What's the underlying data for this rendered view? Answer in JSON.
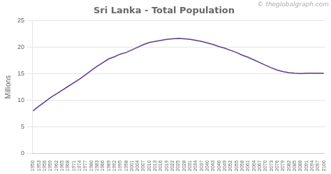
{
  "chart_data": {
    "type": "line",
    "title": "Sri Lanka - Total Population",
    "y_label": "Millions",
    "annotations": [
      "© theglobalgraph.com"
    ],
    "x": [
      1950,
      1953,
      1956,
      1959,
      1962,
      1965,
      1968,
      1971,
      1974,
      1977,
      1980,
      1983,
      1986,
      1989,
      1992,
      1995,
      1998,
      2001,
      2004,
      2007,
      2010,
      2013,
      2016,
      2019,
      2022,
      2025,
      2028,
      2031,
      2034,
      2037,
      2040,
      2043,
      2046,
      2049,
      2052,
      2055,
      2058,
      2061,
      2064,
      2067,
      2070,
      2073,
      2076,
      2079,
      2082,
      2085,
      2088,
      2091,
      2094,
      2097,
      2100
    ],
    "values": [
      8.0,
      8.9,
      9.7,
      10.5,
      11.2,
      11.9,
      12.6,
      13.3,
      14.0,
      14.8,
      15.6,
      16.4,
      17.1,
      17.8,
      18.2,
      18.7,
      19.0,
      19.5,
      20.0,
      20.5,
      20.9,
      21.1,
      21.3,
      21.5,
      21.6,
      21.65,
      21.6,
      21.5,
      21.3,
      21.1,
      20.8,
      20.5,
      20.1,
      19.8,
      19.4,
      19.0,
      18.5,
      18.1,
      17.6,
      17.1,
      16.6,
      16.1,
      15.7,
      15.4,
      15.2,
      15.1,
      15.05,
      15.1,
      15.1,
      15.1,
      15.1
    ],
    "color": "#5B3A8E",
    "xlim": [
      1949.5,
      2100.5
    ],
    "xticks": [
      1950,
      1953,
      1956,
      1959,
      1962,
      1965,
      1968,
      1971,
      1974,
      1977,
      1980,
      1983,
      1986,
      1989,
      1992,
      1995,
      1998,
      2001,
      2004,
      2007,
      2010,
      2013,
      2016,
      2019,
      2022,
      2025,
      2028,
      2031,
      2034,
      2037,
      2040,
      2043,
      2046,
      2049,
      2052,
      2055,
      2058,
      2061,
      2064,
      2067,
      2070,
      2073,
      2076,
      2079,
      2082,
      2085,
      2088,
      2091,
      2094,
      2097,
      2100
    ],
    "ylim": [
      0,
      25
    ],
    "yticks": [
      0,
      5,
      10,
      15,
      20,
      25
    ],
    "grid": "y"
  }
}
